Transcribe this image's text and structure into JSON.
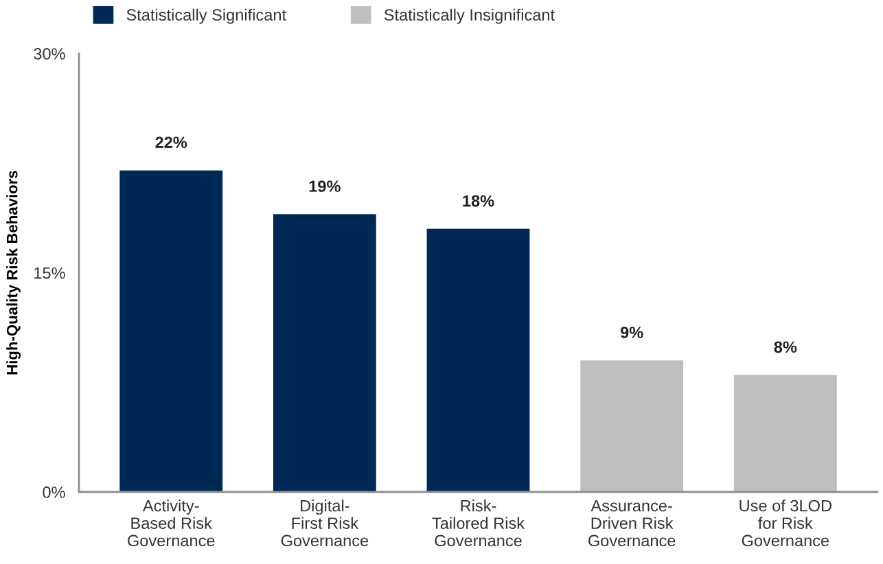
{
  "chart_data": {
    "type": "bar",
    "ylabel": "High-Quality Risk Behaviors",
    "categories": [
      "Activity-\nBased Risk\nGovernance",
      "Digital-\nFirst Risk\nGovernance",
      "Risk-\nTailored Risk\nGovernance",
      "Assurance-\nDriven Risk\nGovernance",
      "Use of 3LOD\nfor Risk\nGovernance"
    ],
    "series": [
      {
        "name": "Statistically Significant",
        "color": "#002855",
        "values": [
          22,
          19,
          18,
          null,
          null
        ],
        "value_labels": [
          "22%",
          "19%",
          "18%",
          null,
          null
        ]
      },
      {
        "name": "Statistically Insignificant",
        "color": "#bfbfbf",
        "values": [
          null,
          null,
          null,
          9,
          8
        ],
        "value_labels": [
          null,
          null,
          null,
          "9%",
          "8%"
        ]
      }
    ],
    "ylim": [
      0,
      30
    ],
    "yticks": [
      {
        "value": 0,
        "label": "0%"
      },
      {
        "value": 15,
        "label": "15%"
      },
      {
        "value": 30,
        "label": "30%"
      }
    ],
    "grid": false,
    "legend": "top left"
  }
}
